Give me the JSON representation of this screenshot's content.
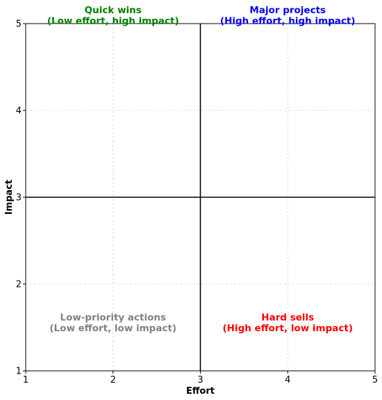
{
  "chart_data": {
    "type": "scatter",
    "xlabel": "Effort",
    "ylabel": "Impact",
    "xlim": [
      1,
      5
    ],
    "ylim": [
      1,
      5
    ],
    "xticks": [
      1,
      2,
      3,
      4,
      5
    ],
    "yticks": [
      1,
      2,
      3,
      4,
      5
    ],
    "grid": true,
    "divider_x": 3,
    "divider_y": 3,
    "quadrants": [
      {
        "id": "quick-wins",
        "line1": "Quick wins",
        "line2": "(Low effort, high impact)",
        "x": 2,
        "y": 5,
        "color": "#008000"
      },
      {
        "id": "major-projects",
        "line1": "Major projects",
        "line2": "(High effort, high impact)",
        "x": 4,
        "y": 5,
        "color": "#0000ff"
      },
      {
        "id": "low-priority",
        "line1": "Low-priority actions",
        "line2": "(Low effort, low impact)",
        "x": 2,
        "y": 1.5,
        "color": "#808080"
      },
      {
        "id": "hard-sells",
        "line1": "Hard sells",
        "line2": "(High effort, low impact)",
        "x": 4,
        "y": 1.5,
        "color": "#ff0000"
      }
    ]
  }
}
